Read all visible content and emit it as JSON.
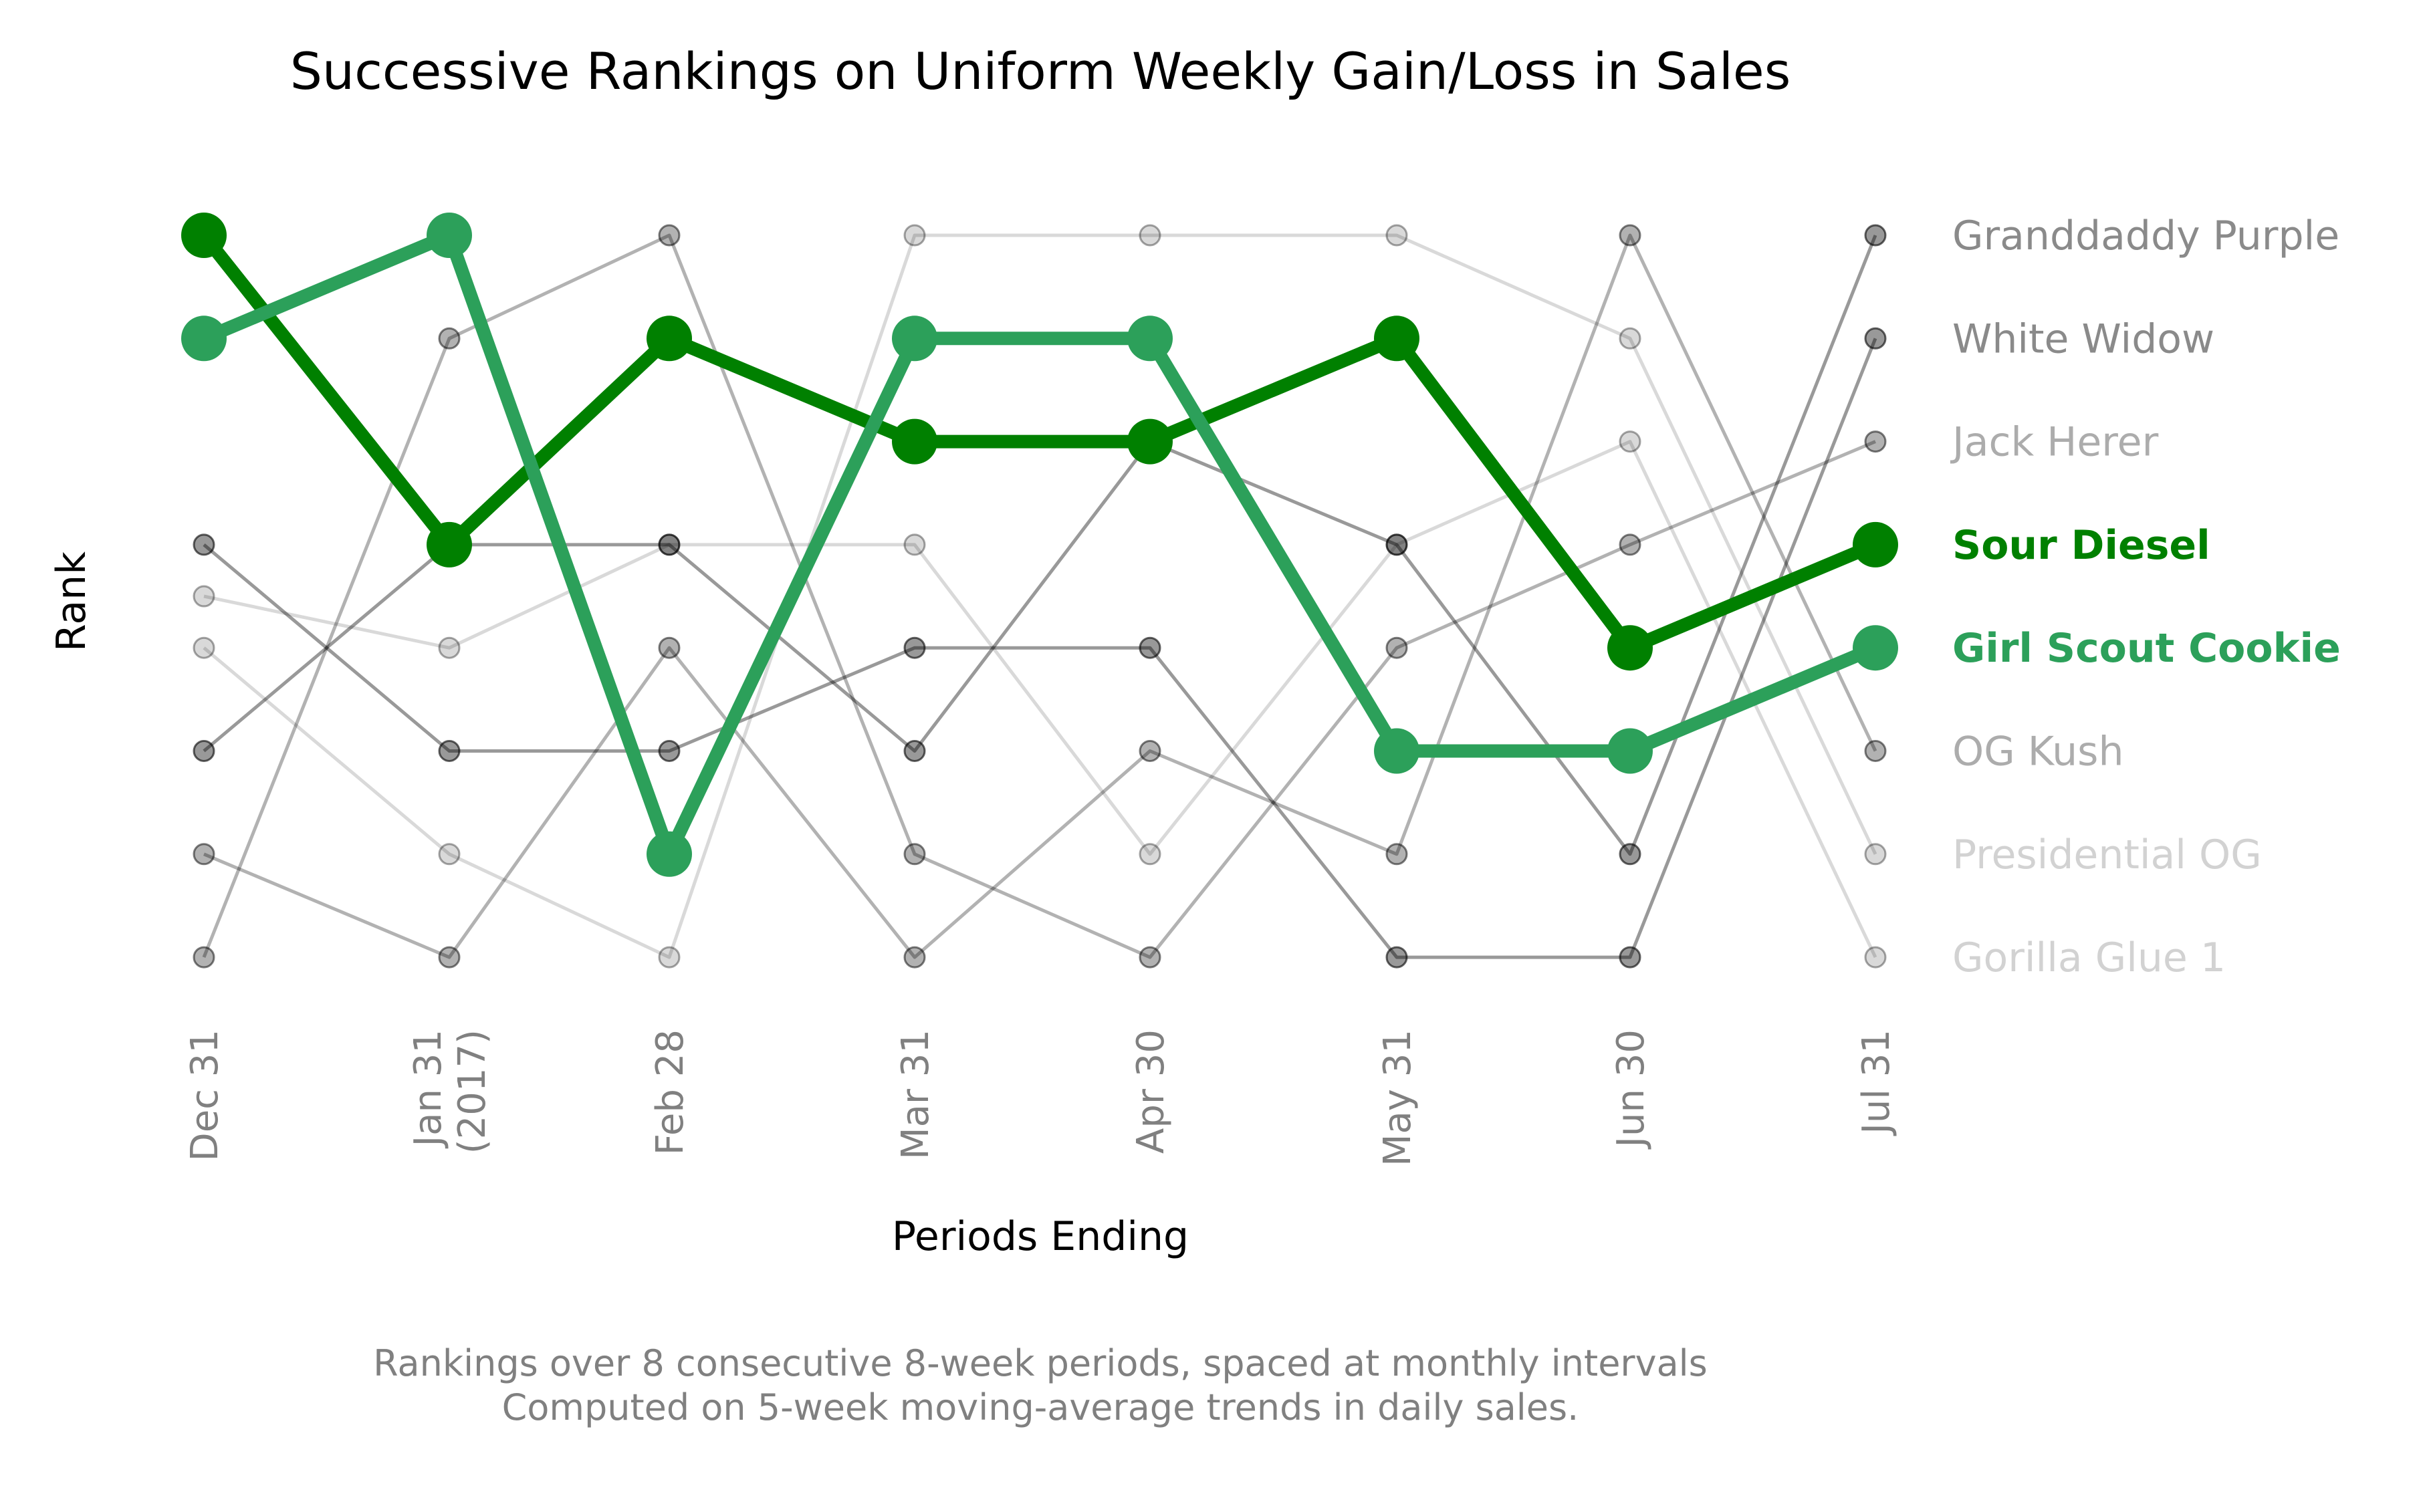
{
  "chart_data": {
    "type": "line",
    "title": "Successive Rankings on Uniform Weekly Gain/Loss in Sales",
    "xlabel": "Periods Ending",
    "ylabel": "Rank",
    "x_ticks": [
      "Dec 31",
      "Jan 31\n(2017)",
      "Feb 28",
      "Mar 31",
      "Apr 30",
      "May 31",
      "Jun 30",
      "Jul 31"
    ],
    "x_dates": [
      "2016-12-31",
      "2017-01-31",
      "2017-02-28",
      "2017-03-31",
      "2017-04-30",
      "2017-05-31",
      "2017-06-30",
      "2017-07-31"
    ],
    "y_inverted": true,
    "ylim": [
      1,
      8
    ],
    "grid": false,
    "legend_placement": "right, labels aligned with final ranks",
    "series": [
      {
        "name": "Granddaddy Purple",
        "color": "#000000",
        "opacity": 0.4,
        "highlight": false,
        "values": [
          6,
          4,
          4,
          6,
          3,
          4,
          7,
          1
        ]
      },
      {
        "name": "White Widow",
        "color": "#000000",
        "opacity": 0.4,
        "highlight": false,
        "values": [
          4,
          6,
          6,
          5,
          5,
          8,
          8,
          2
        ]
      },
      {
        "name": "Jack Herer",
        "color": "#000000",
        "opacity": 0.3,
        "highlight": false,
        "values": [
          8,
          2,
          1,
          7,
          8,
          5,
          4,
          3
        ]
      },
      {
        "name": "Sour Diesel",
        "color": "#008000",
        "opacity": 1,
        "highlight": true,
        "values": [
          1,
          4,
          2,
          3,
          3,
          2,
          5,
          4
        ]
      },
      {
        "name": "Girl Scout Cookie",
        "color": "#2ca05a",
        "opacity": 1,
        "highlight": true,
        "values": [
          2,
          1,
          7,
          2,
          2,
          6,
          6,
          5
        ]
      },
      {
        "name": "OG Kush",
        "color": "#000000",
        "opacity": 0.3,
        "highlight": false,
        "values": [
          7,
          8,
          5,
          8,
          6,
          7,
          1,
          6
        ]
      },
      {
        "name": "Presidential OG",
        "color": "#000000",
        "opacity": 0.15,
        "highlight": false,
        "values": [
          5,
          7,
          8,
          1,
          1,
          1,
          2,
          7
        ]
      },
      {
        "name": "Gorilla Glue 1",
        "color": "#000000",
        "opacity": 0.15,
        "highlight": false,
        "values": [
          4.5,
          5,
          4,
          4,
          7,
          4,
          3,
          8
        ]
      }
    ],
    "caption": [
      "Rankings over 8 consecutive 8-week periods, spaced at monthly intervals",
      "Computed on 5-week moving-average trends in daily sales."
    ]
  }
}
